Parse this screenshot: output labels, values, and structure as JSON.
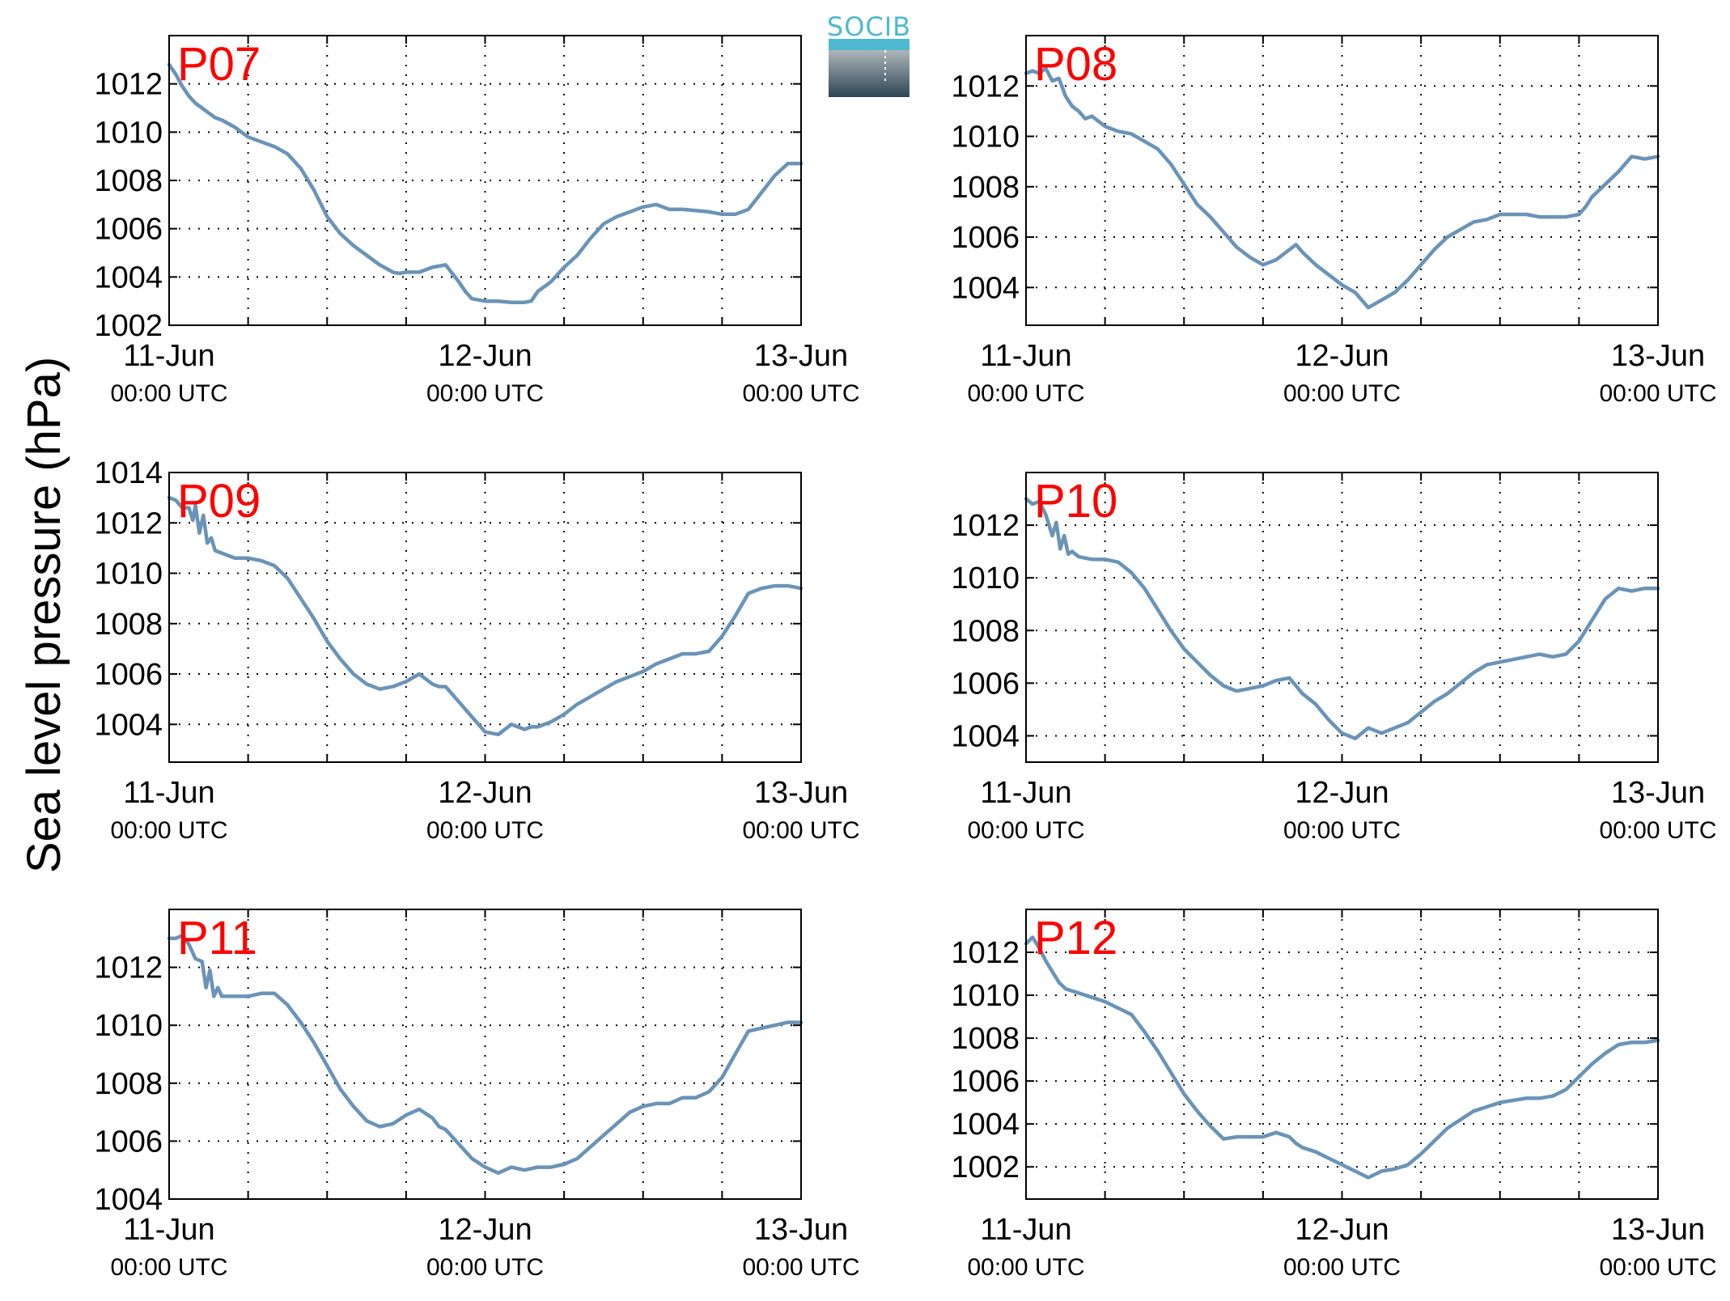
{
  "figure": {
    "ylabel": "Sea level pressure (hPa)",
    "logo_text": "SOCIB"
  },
  "colors": {
    "series": "#6a93b7",
    "panel_label": "#ff0000",
    "logo_top": "#4fb9d0",
    "logo_bottom": "#2e4654"
  },
  "chart_data": [
    {
      "type": "line",
      "label": "P07",
      "ylim": [
        1002,
        1014
      ],
      "xlim": [
        0,
        48
      ],
      "yticks": [
        1002,
        1004,
        1006,
        1008,
        1010,
        1012
      ],
      "xticks": [
        {
          "value": 0,
          "label": "11-Jun",
          "sub": "00:00 UTC"
        },
        {
          "value": 24,
          "label": "12-Jun",
          "sub": "00:00 UTC"
        },
        {
          "value": 48,
          "label": "13-Jun",
          "sub": "00:00 UTC"
        }
      ],
      "minor_xticks": [
        6,
        12,
        18,
        30,
        36,
        42
      ],
      "grid": true,
      "x": [
        0,
        0.5,
        1,
        1.5,
        2,
        2.5,
        3,
        3.5,
        4,
        5,
        6,
        7,
        8,
        9,
        10,
        11,
        12,
        13,
        14,
        15,
        16,
        17,
        17.5,
        18,
        19,
        20,
        21,
        22,
        22.5,
        23,
        24,
        25,
        26,
        27,
        27.5,
        28,
        29,
        30,
        31,
        32,
        33,
        34,
        35,
        36,
        37,
        38,
        39,
        40,
        41,
        42,
        42.5,
        43,
        44,
        45,
        46,
        47,
        48
      ],
      "y": [
        1012.8,
        1012.4,
        1011.9,
        1011.5,
        1011.2,
        1011,
        1010.8,
        1010.6,
        1010.5,
        1010.2,
        1009.8,
        1009.6,
        1009.4,
        1009.1,
        1008.5,
        1007.6,
        1006.5,
        1005.8,
        1005.3,
        1004.9,
        1004.5,
        1004.2,
        1004.15,
        1004.2,
        1004.2,
        1004.4,
        1004.5,
        1003.8,
        1003.4,
        1003.1,
        1003,
        1003,
        1002.95,
        1002.95,
        1003,
        1003.4,
        1003.8,
        1004.4,
        1004.9,
        1005.6,
        1006.2,
        1006.5,
        1006.7,
        1006.9,
        1007,
        1006.8,
        1006.8,
        1006.75,
        1006.7,
        1006.6,
        1006.6,
        1006.6,
        1006.8,
        1007.5,
        1008.2,
        1008.7,
        1008.7
      ]
    },
    {
      "type": "line",
      "label": "P08",
      "ylim": [
        1002.5,
        1014
      ],
      "xlim": [
        0,
        48
      ],
      "yticks": [
        1004,
        1006,
        1008,
        1010,
        1012
      ],
      "xticks": [
        {
          "value": 0,
          "label": "11-Jun",
          "sub": "00:00 UTC"
        },
        {
          "value": 24,
          "label": "12-Jun",
          "sub": "00:00 UTC"
        },
        {
          "value": 48,
          "label": "13-Jun",
          "sub": "00:00 UTC"
        }
      ],
      "minor_xticks": [
        6,
        12,
        18,
        30,
        36,
        42
      ],
      "grid": true,
      "x": [
        0,
        0.5,
        1,
        1.5,
        2,
        2.5,
        3,
        3.5,
        4,
        4.5,
        5,
        6,
        7,
        8,
        9,
        10,
        11,
        12,
        13,
        14,
        15,
        16,
        17,
        18,
        19,
        20,
        20.5,
        21,
        22,
        23,
        24,
        25,
        26,
        27,
        28,
        29,
        30,
        31,
        32,
        33,
        34,
        35,
        36,
        37,
        38,
        39,
        40,
        41,
        42,
        42.5,
        43,
        44,
        45,
        46,
        47,
        48
      ],
      "y": [
        1012.5,
        1012.6,
        1012.5,
        1012.7,
        1012.2,
        1012.3,
        1011.6,
        1011.2,
        1011,
        1010.7,
        1010.8,
        1010.4,
        1010.2,
        1010.1,
        1009.8,
        1009.5,
        1008.9,
        1008.1,
        1007.3,
        1006.8,
        1006.2,
        1005.6,
        1005.2,
        1004.9,
        1005.1,
        1005.5,
        1005.7,
        1005.4,
        1004.9,
        1004.5,
        1004.1,
        1003.8,
        1003.2,
        1003.5,
        1003.8,
        1004.3,
        1004.9,
        1005.5,
        1006,
        1006.3,
        1006.6,
        1006.7,
        1006.9,
        1006.9,
        1006.9,
        1006.8,
        1006.8,
        1006.8,
        1006.9,
        1007.2,
        1007.6,
        1008.1,
        1008.6,
        1009.2,
        1009.1,
        1009.2
      ]
    },
    {
      "type": "line",
      "label": "P09",
      "ylim": [
        1002.5,
        1014
      ],
      "xlim": [
        0,
        48
      ],
      "yticks": [
        1004,
        1006,
        1008,
        1010,
        1012,
        1014
      ],
      "xticks": [
        {
          "value": 0,
          "label": "11-Jun",
          "sub": "00:00 UTC"
        },
        {
          "value": 24,
          "label": "12-Jun",
          "sub": "00:00 UTC"
        },
        {
          "value": 48,
          "label": "13-Jun",
          "sub": "00:00 UTC"
        }
      ],
      "minor_xticks": [
        6,
        12,
        18,
        30,
        36,
        42
      ],
      "grid": true,
      "x": [
        0,
        0.5,
        1,
        1.5,
        1.8,
        2,
        2.3,
        2.6,
        2.9,
        3.2,
        3.5,
        4,
        5,
        6,
        7,
        8,
        9,
        10,
        11,
        12,
        13,
        14,
        15,
        16,
        17,
        18,
        19,
        20,
        20.5,
        21,
        22,
        23,
        24,
        25,
        26,
        27,
        27.5,
        28,
        29,
        30,
        31,
        32,
        33,
        34,
        35,
        36,
        37,
        38,
        39,
        40,
        41,
        42,
        43,
        44,
        45,
        46,
        47,
        48
      ],
      "y": [
        1013,
        1012.9,
        1012.6,
        1012.6,
        1012.1,
        1012.7,
        1011.6,
        1012.3,
        1011.2,
        1011.4,
        1010.9,
        1010.8,
        1010.6,
        1010.6,
        1010.5,
        1010.3,
        1009.8,
        1009,
        1008.2,
        1007.3,
        1006.6,
        1006,
        1005.6,
        1005.4,
        1005.5,
        1005.7,
        1006,
        1005.6,
        1005.5,
        1005.5,
        1004.9,
        1004.3,
        1003.7,
        1003.6,
        1004,
        1003.8,
        1003.9,
        1003.9,
        1004.1,
        1004.4,
        1004.8,
        1005.1,
        1005.4,
        1005.7,
        1005.9,
        1006.1,
        1006.4,
        1006.6,
        1006.8,
        1006.8,
        1006.9,
        1007.5,
        1008.3,
        1009.2,
        1009.4,
        1009.5,
        1009.5,
        1009.4
      ]
    },
    {
      "type": "line",
      "label": "P10",
      "ylim": [
        1003,
        1014
      ],
      "xlim": [
        0,
        48
      ],
      "yticks": [
        1004,
        1006,
        1008,
        1010,
        1012
      ],
      "xticks": [
        {
          "value": 0,
          "label": "11-Jun",
          "sub": "00:00 UTC"
        },
        {
          "value": 24,
          "label": "12-Jun",
          "sub": "00:00 UTC"
        },
        {
          "value": 48,
          "label": "13-Jun",
          "sub": "00:00 UTC"
        }
      ],
      "minor_xticks": [
        6,
        12,
        18,
        30,
        36,
        42
      ],
      "grid": true,
      "x": [
        0,
        0.5,
        1,
        1.5,
        2,
        2.3,
        2.6,
        2.9,
        3.2,
        3.5,
        4,
        5,
        6,
        7,
        8,
        9,
        10,
        11,
        12,
        13,
        14,
        15,
        16,
        17,
        18,
        19,
        20,
        20.5,
        21,
        22,
        23,
        24,
        25,
        26,
        27,
        28,
        29,
        30,
        31,
        32,
        33,
        34,
        35,
        36,
        37,
        38,
        39,
        40,
        41,
        42,
        43,
        44,
        45,
        46,
        47,
        48
      ],
      "y": [
        1013,
        1012.8,
        1012.9,
        1012.4,
        1011.6,
        1012.1,
        1011.1,
        1011.6,
        1010.9,
        1011,
        1010.8,
        1010.7,
        1010.7,
        1010.6,
        1010.2,
        1009.6,
        1008.8,
        1008,
        1007.3,
        1006.8,
        1006.3,
        1005.9,
        1005.7,
        1005.8,
        1005.9,
        1006.1,
        1006.2,
        1005.9,
        1005.6,
        1005.2,
        1004.6,
        1004.1,
        1003.9,
        1004.3,
        1004.1,
        1004.3,
        1004.5,
        1004.9,
        1005.3,
        1005.6,
        1006,
        1006.4,
        1006.7,
        1006.8,
        1006.9,
        1007,
        1007.1,
        1007,
        1007.1,
        1007.6,
        1008.4,
        1009.2,
        1009.6,
        1009.5,
        1009.6,
        1009.6
      ]
    },
    {
      "type": "line",
      "label": "P11",
      "ylim": [
        1004,
        1014
      ],
      "xlim": [
        0,
        48
      ],
      "yticks": [
        1004,
        1006,
        1008,
        1010,
        1012
      ],
      "xticks": [
        {
          "value": 0,
          "label": "11-Jun",
          "sub": "00:00 UTC"
        },
        {
          "value": 24,
          "label": "12-Jun",
          "sub": "00:00 UTC"
        },
        {
          "value": 48,
          "label": "13-Jun",
          "sub": "00:00 UTC"
        }
      ],
      "minor_xticks": [
        6,
        12,
        18,
        30,
        36,
        42
      ],
      "grid": true,
      "x": [
        0,
        0.5,
        1,
        1.5,
        2,
        2.5,
        2.8,
        3.1,
        3.4,
        3.7,
        4,
        5,
        6,
        7,
        8,
        9,
        10,
        11,
        12,
        13,
        14,
        15,
        16,
        17,
        18,
        19,
        20,
        20.5,
        21,
        22,
        23,
        24,
        25,
        26,
        27,
        28,
        29,
        30,
        31,
        32,
        33,
        34,
        35,
        36,
        37,
        38,
        39,
        40,
        41,
        42,
        43,
        44,
        45,
        46,
        47,
        48
      ],
      "y": [
        1013,
        1013,
        1013.1,
        1012.8,
        1012.3,
        1012.2,
        1011.3,
        1011.9,
        1011,
        1011.3,
        1011,
        1011,
        1011,
        1011.1,
        1011.1,
        1010.7,
        1010.1,
        1009.4,
        1008.6,
        1007.8,
        1007.2,
        1006.7,
        1006.5,
        1006.6,
        1006.9,
        1007.1,
        1006.8,
        1006.5,
        1006.4,
        1005.9,
        1005.4,
        1005.1,
        1004.9,
        1005.1,
        1005,
        1005.1,
        1005.1,
        1005.2,
        1005.4,
        1005.8,
        1006.2,
        1006.6,
        1007,
        1007.2,
        1007.3,
        1007.3,
        1007.5,
        1007.5,
        1007.7,
        1008.2,
        1009,
        1009.8,
        1009.9,
        1010,
        1010.1,
        1010.1
      ]
    },
    {
      "type": "line",
      "label": "P12",
      "ylim": [
        1000.5,
        1014
      ],
      "xlim": [
        0,
        48
      ],
      "yticks": [
        1002,
        1004,
        1006,
        1008,
        1010,
        1012
      ],
      "xticks": [
        {
          "value": 0,
          "label": "11-Jun",
          "sub": "00:00 UTC"
        },
        {
          "value": 24,
          "label": "12-Jun",
          "sub": "00:00 UTC"
        },
        {
          "value": 48,
          "label": "13-Jun",
          "sub": "00:00 UTC"
        }
      ],
      "minor_xticks": [
        6,
        12,
        18,
        30,
        36,
        42
      ],
      "grid": true,
      "x": [
        0,
        0.5,
        1,
        1.5,
        2,
        2.5,
        3,
        3.5,
        4,
        5,
        6,
        7,
        8,
        9,
        10,
        11,
        12,
        13,
        14,
        15,
        16,
        17,
        18,
        19,
        20,
        20.5,
        21,
        22,
        23,
        24,
        25,
        26,
        27,
        28,
        29,
        30,
        31,
        32,
        33,
        34,
        35,
        36,
        37,
        38,
        39,
        40,
        41,
        42,
        43,
        44,
        45,
        46,
        47,
        48
      ],
      "y": [
        1012.4,
        1012.7,
        1012.2,
        1011.6,
        1011.1,
        1010.6,
        1010.3,
        1010.2,
        1010.1,
        1009.9,
        1009.7,
        1009.4,
        1009.1,
        1008.3,
        1007.4,
        1006.4,
        1005.4,
        1004.6,
        1003.9,
        1003.3,
        1003.4,
        1003.4,
        1003.4,
        1003.6,
        1003.4,
        1003.1,
        1002.9,
        1002.7,
        1002.4,
        1002.1,
        1001.8,
        1001.5,
        1001.8,
        1001.9,
        1002.1,
        1002.6,
        1003.2,
        1003.8,
        1004.2,
        1004.6,
        1004.8,
        1005,
        1005.1,
        1005.2,
        1005.2,
        1005.3,
        1005.6,
        1006.2,
        1006.8,
        1007.3,
        1007.7,
        1007.8,
        1007.8,
        1007.9
      ]
    }
  ]
}
